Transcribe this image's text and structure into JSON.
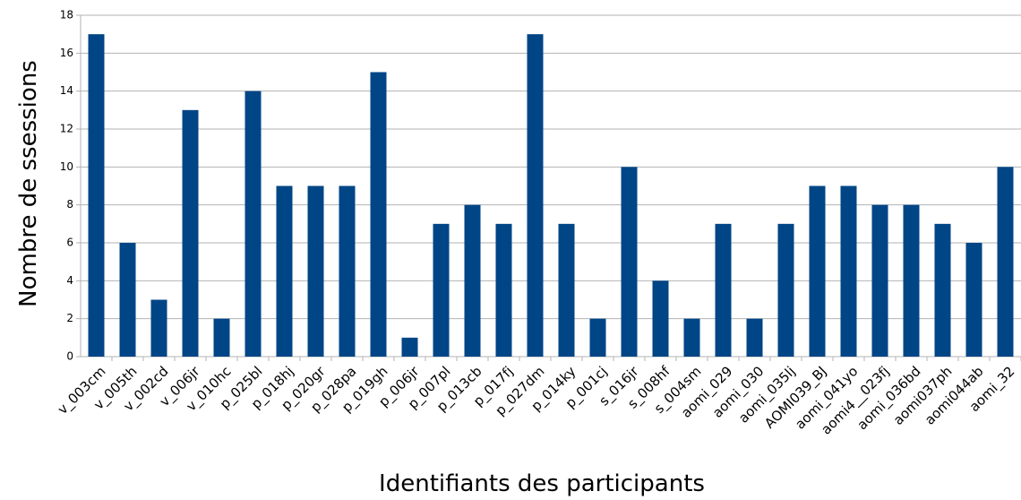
{
  "chart_data": {
    "type": "bar",
    "x_label": "Identifiants des participants",
    "y_label": "Nombre de ssessions",
    "categories": [
      "v_003cm",
      "v_005th",
      "v_002cd",
      "v_006jr",
      "v_010hc",
      "p_025bl",
      "p_018hj",
      "p_020gr",
      "p_028pa",
      "p_019gh",
      "p_006jr",
      "p_007pl",
      "p_013cb",
      "p_017fj",
      "p_027dm",
      "p_014ky",
      "p_001cj",
      "s_016jr",
      "s_008hf",
      "s_004sm",
      "aomi_029",
      "aomi_030",
      "aomi_035lj",
      "AOMI039_BJ",
      "aomi_041yo",
      "aomi4__023fj",
      "aomi_036bd",
      "aomi037ph",
      "aomi044ab",
      "aomi_32"
    ],
    "values": [
      17,
      6,
      3,
      13,
      2,
      14,
      9,
      9,
      9,
      15,
      1,
      7,
      8,
      7,
      17,
      7,
      2,
      10,
      4,
      2,
      7,
      2,
      7,
      9,
      9,
      8,
      8,
      7,
      6,
      10
    ],
    "color": "#004586",
    "ylim": [
      0,
      18
    ],
    "yticks": [
      0,
      2,
      4,
      6,
      8,
      10,
      12,
      14,
      16,
      18
    ],
    "grid": true
  }
}
